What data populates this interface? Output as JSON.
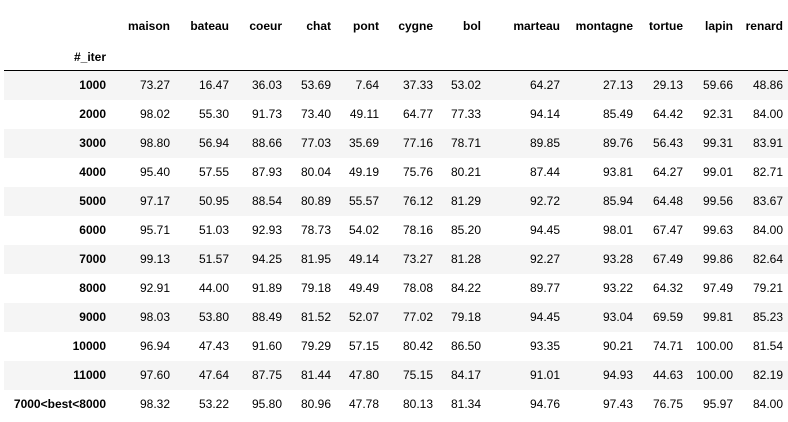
{
  "table": {
    "index_name": "#_iter",
    "columns": [
      "maison",
      "bateau",
      "coeur",
      "chat",
      "pont",
      "cygne",
      "bol",
      "marteau",
      "montagne",
      "tortue",
      "lapin",
      "renard"
    ],
    "rows": [
      {
        "index": "1000",
        "values": [
          "73.27",
          "16.47",
          "36.03",
          "53.69",
          "7.64",
          "37.33",
          "53.02",
          "64.27",
          "27.13",
          "29.13",
          "59.66",
          "48.86"
        ]
      },
      {
        "index": "2000",
        "values": [
          "98.02",
          "55.30",
          "91.73",
          "73.40",
          "49.11",
          "64.77",
          "77.33",
          "94.14",
          "85.49",
          "64.42",
          "92.31",
          "84.00"
        ]
      },
      {
        "index": "3000",
        "values": [
          "98.80",
          "56.94",
          "88.66",
          "77.03",
          "35.69",
          "77.16",
          "78.71",
          "89.85",
          "89.76",
          "56.43",
          "99.31",
          "83.91"
        ]
      },
      {
        "index": "4000",
        "values": [
          "95.40",
          "57.55",
          "87.93",
          "80.04",
          "49.19",
          "75.76",
          "80.21",
          "87.44",
          "93.81",
          "64.27",
          "99.01",
          "82.71"
        ]
      },
      {
        "index": "5000",
        "values": [
          "97.17",
          "50.95",
          "88.54",
          "80.89",
          "55.57",
          "76.12",
          "81.29",
          "92.72",
          "85.94",
          "64.48",
          "99.56",
          "83.67"
        ]
      },
      {
        "index": "6000",
        "values": [
          "95.71",
          "51.03",
          "92.93",
          "78.73",
          "54.02",
          "78.16",
          "85.20",
          "94.45",
          "98.01",
          "67.47",
          "99.63",
          "84.00"
        ]
      },
      {
        "index": "7000",
        "values": [
          "99.13",
          "51.57",
          "94.25",
          "81.95",
          "49.14",
          "73.27",
          "81.28",
          "92.27",
          "93.28",
          "67.49",
          "99.86",
          "82.64"
        ]
      },
      {
        "index": "8000",
        "values": [
          "92.91",
          "44.00",
          "91.89",
          "79.18",
          "49.49",
          "78.08",
          "84.22",
          "89.77",
          "93.22",
          "64.32",
          "97.49",
          "79.21"
        ]
      },
      {
        "index": "9000",
        "values": [
          "98.03",
          "53.80",
          "88.49",
          "81.52",
          "52.07",
          "77.02",
          "79.18",
          "94.45",
          "93.04",
          "69.59",
          "99.81",
          "85.23"
        ]
      },
      {
        "index": "10000",
        "values": [
          "96.94",
          "47.43",
          "91.60",
          "79.29",
          "57.15",
          "80.42",
          "86.50",
          "93.35",
          "90.21",
          "74.71",
          "100.00",
          "81.54"
        ]
      },
      {
        "index": "11000",
        "values": [
          "97.60",
          "47.64",
          "87.75",
          "81.44",
          "47.80",
          "75.15",
          "84.17",
          "91.01",
          "94.93",
          "44.63",
          "100.00",
          "82.19"
        ]
      },
      {
        "index": "7000<best<8000",
        "values": [
          "98.32",
          "53.22",
          "95.80",
          "80.96",
          "47.78",
          "80.13",
          "81.34",
          "94.76",
          "97.43",
          "76.75",
          "95.97",
          "84.00"
        ]
      }
    ]
  },
  "colors": {
    "stripe": "#f5f5f5",
    "background": "#ffffff",
    "rule": "#000000"
  }
}
